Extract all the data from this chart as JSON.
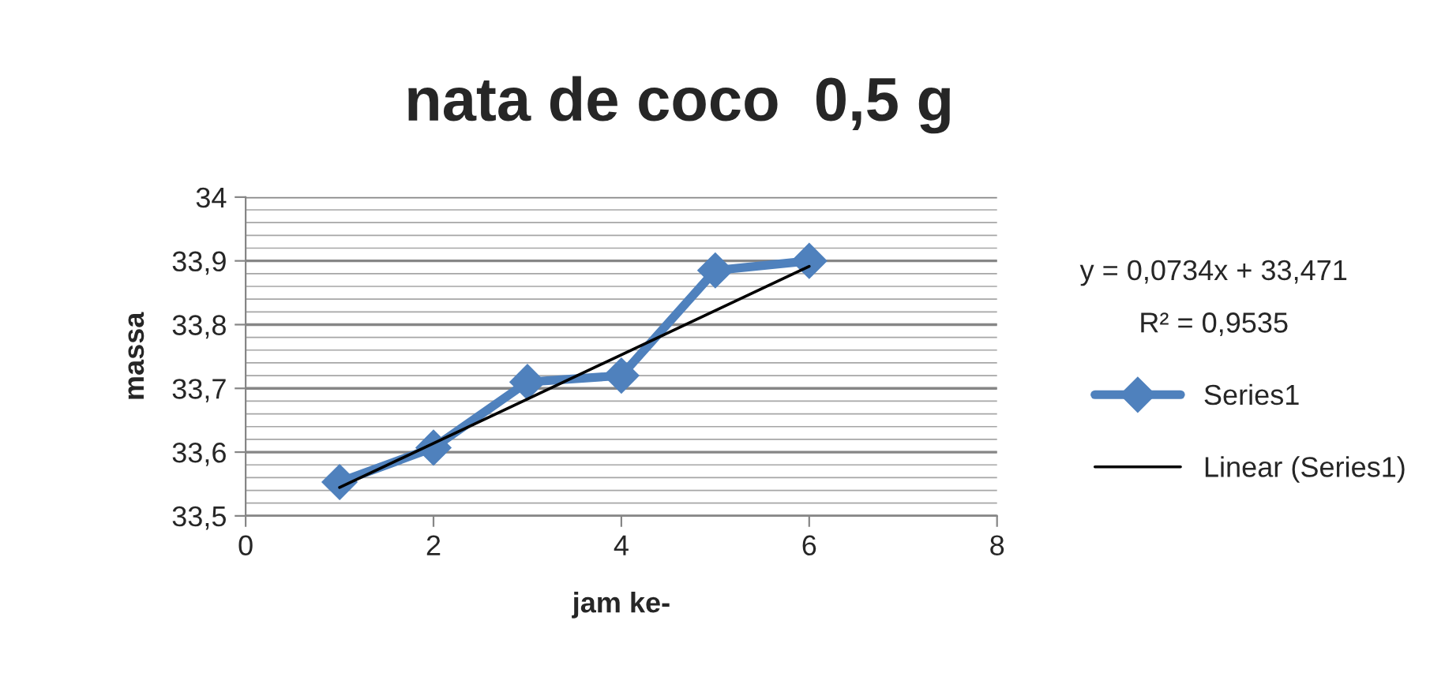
{
  "chart_data": {
    "type": "line",
    "title": "nata de coco  0,5 g",
    "xlabel": "jam ke-",
    "ylabel": "massa",
    "x": [
      1,
      2,
      3,
      4,
      5,
      6
    ],
    "series": [
      {
        "name": "Series1",
        "color": "#4f81bd",
        "values": [
          33.553,
          33.607,
          33.71,
          33.72,
          33.885,
          33.9
        ],
        "marker": "diamond"
      },
      {
        "name": "Linear (Series1)",
        "color": "#000000",
        "type": "line",
        "x": [
          1,
          6
        ],
        "values": [
          33.5444,
          33.8914
        ],
        "marker": "none"
      }
    ],
    "annotations": [
      "y = 0,0734x + 33,471",
      "R² = 0,9535"
    ],
    "xlim": [
      0,
      8
    ],
    "xticks": [
      0,
      2,
      4,
      6,
      8
    ],
    "ylim": [
      33.5,
      34
    ],
    "yticks": [
      {
        "value": 33.5,
        "label": "33,5"
      },
      {
        "value": 33.6,
        "label": "33,6"
      },
      {
        "value": 33.7,
        "label": "33,7"
      },
      {
        "value": 33.8,
        "label": "33,8"
      },
      {
        "value": 33.9,
        "label": "33,9"
      },
      {
        "value": 34,
        "label": "34"
      }
    ],
    "grid": "y",
    "legend": "right",
    "line_style": "solid"
  }
}
